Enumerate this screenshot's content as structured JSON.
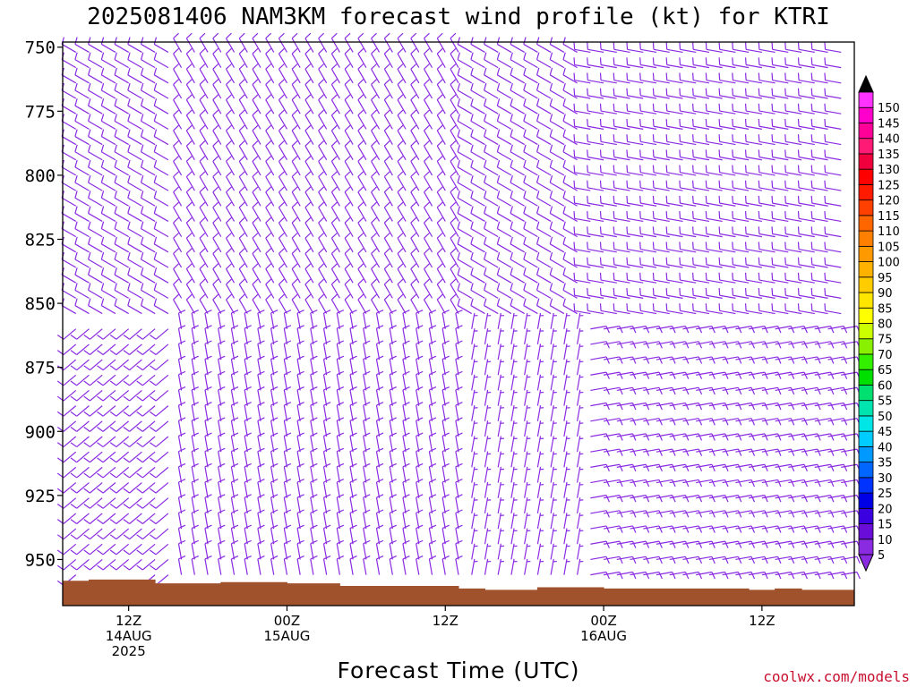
{
  "chart_data": {
    "type": "wind-barb-profile",
    "title": "2025081406 NAM3KM forecast wind profile (kt) for KTRI",
    "xlabel": "Forecast Time (UTC)",
    "ylabel": "",
    "y_ticks": [
      750,
      775,
      800,
      825,
      850,
      875,
      900,
      925,
      950
    ],
    "y_range_hpa": [
      748,
      968
    ],
    "x_range_hours": [
      -5,
      55
    ],
    "x_ticks": [
      {
        "hour": 0,
        "lines": [
          "12Z",
          "14AUG",
          "2025"
        ]
      },
      {
        "hour": 12,
        "lines": [
          "00Z",
          "15AUG"
        ]
      },
      {
        "hour": 24,
        "lines": [
          "12Z"
        ]
      },
      {
        "hour": 36,
        "lines": [
          "00Z",
          "16AUG"
        ]
      },
      {
        "hour": 48,
        "lines": [
          "12Z"
        ]
      }
    ],
    "barb_color": "#8a2be2",
    "terrain_color": "#a0522d",
    "barb_level_spacing_hpa": 6,
    "barb_time_spacing_hours": 1,
    "surface_pressure": [
      {
        "hour": -5,
        "hpa": 958.5
      },
      {
        "hour": -3,
        "hpa": 958
      },
      {
        "hour": 2,
        "hpa": 959.5
      },
      {
        "hour": 7,
        "hpa": 959
      },
      {
        "hour": 12,
        "hpa": 959.5
      },
      {
        "hour": 16,
        "hpa": 960.5
      },
      {
        "hour": 25,
        "hpa": 961.5
      },
      {
        "hour": 27,
        "hpa": 962
      },
      {
        "hour": 31,
        "hpa": 961
      },
      {
        "hour": 36,
        "hpa": 961.5
      },
      {
        "hour": 47,
        "hpa": 962
      },
      {
        "hour": 49,
        "hpa": 961.5
      },
      {
        "hour": 51,
        "hpa": 962
      },
      {
        "hour": 55,
        "hpa": 961
      }
    ],
    "wind_regimes": [
      {
        "hours": [
          -5,
          4
        ],
        "hpa": [
          748,
          860
        ],
        "dir_deg": 300,
        "speed_kt": 10
      },
      {
        "hours": [
          4,
          26
        ],
        "hpa": [
          748,
          860
        ],
        "dir_deg": 330,
        "speed_kt": 10
      },
      {
        "hours": [
          26,
          35
        ],
        "hpa": [
          748,
          860
        ],
        "dir_deg": 300,
        "speed_kt": 10
      },
      {
        "hours": [
          35,
          55
        ],
        "hpa": [
          748,
          860
        ],
        "dir_deg": 280,
        "speed_kt": 10
      },
      {
        "hours": [
          -5,
          4
        ],
        "hpa": [
          860,
          968
        ],
        "dir_deg": 230,
        "speed_kt": 10
      },
      {
        "hours": [
          4,
          26
        ],
        "hpa": [
          860,
          968
        ],
        "dir_deg": 350,
        "speed_kt": 10
      },
      {
        "hours": [
          26,
          35
        ],
        "hpa": [
          860,
          968
        ],
        "dir_deg": 10,
        "speed_kt": 5
      },
      {
        "hours": [
          35,
          55
        ],
        "hpa": [
          860,
          968
        ],
        "dir_deg": 80,
        "speed_kt": 10
      }
    ],
    "colorbar": {
      "label_values": [
        5,
        10,
        15,
        20,
        25,
        30,
        35,
        40,
        45,
        50,
        55,
        60,
        65,
        70,
        75,
        80,
        85,
        90,
        95,
        100,
        105,
        110,
        115,
        120,
        125,
        130,
        135,
        140,
        145,
        150
      ],
      "colors": [
        "#8a2be2",
        "#6a0dd8",
        "#3a00e0",
        "#0000e6",
        "#0033ff",
        "#0066ff",
        "#0099ff",
        "#00ccff",
        "#00e5e5",
        "#00e5b0",
        "#00e070",
        "#00e000",
        "#33f000",
        "#88f000",
        "#ccff00",
        "#ffff00",
        "#ffe600",
        "#ffcc00",
        "#ffb300",
        "#ff9900",
        "#ff8000",
        "#ff6600",
        "#ff4000",
        "#ff1a00",
        "#ff0000",
        "#f0003c",
        "#ff1a75",
        "#ff0099",
        "#ff00cc",
        "#ff33ff"
      ],
      "top_arrow_color": "#000000",
      "bottom_arrow_color": "#8a2be2"
    }
  },
  "credit": "coolwx.com/models"
}
